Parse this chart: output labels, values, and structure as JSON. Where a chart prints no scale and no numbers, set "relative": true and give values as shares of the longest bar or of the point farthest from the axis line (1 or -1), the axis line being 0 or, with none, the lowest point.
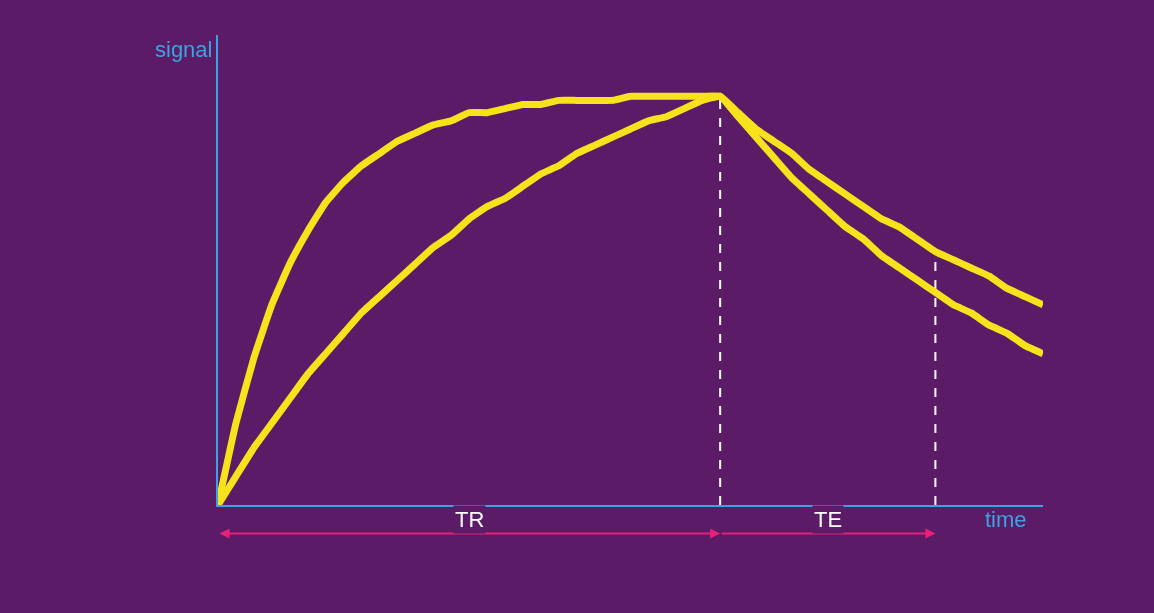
{
  "chart_data": {
    "type": "line",
    "relative": true,
    "xlabel": "time",
    "ylabel": "signal",
    "categories": [
      null,
      null,
      null,
      null,
      null,
      null,
      null,
      null,
      null,
      null,
      null,
      null,
      null,
      null,
      null,
      null,
      null,
      null,
      null,
      null,
      null,
      null,
      null,
      null,
      null,
      null,
      null,
      null,
      null,
      null,
      null,
      null,
      null,
      null,
      null,
      null,
      null,
      null,
      null,
      null,
      null,
      null,
      null,
      null,
      null,
      null,
      null
    ],
    "series": [
      {
        "color": "#f7e21b",
        "values": [
          0,
          0.2,
          0.36,
          0.49,
          0.59,
          0.67,
          0.74,
          0.79,
          0.83,
          0.86,
          0.89,
          0.91,
          0.93,
          0.94,
          0.96,
          0.96,
          0.97,
          0.98,
          0.98,
          0.99,
          0.99,
          0.99,
          0.99,
          1,
          1,
          1,
          1,
          1,
          1,
          0.96,
          0.92,
          0.89,
          0.86,
          0.82,
          0.79,
          0.76,
          0.73,
          0.7,
          0.68,
          0.65,
          0.62,
          0.6,
          0.58,
          0.56,
          0.53,
          0.51,
          0.49
        ]
      },
      {
        "color": "#f7e21b",
        "values": [
          0,
          0.07,
          0.14,
          0.2,
          0.26,
          0.32,
          0.37,
          0.42,
          0.47,
          0.51,
          0.55,
          0.59,
          0.63,
          0.66,
          0.7,
          0.73,
          0.75,
          0.78,
          0.81,
          0.83,
          0.86,
          0.88,
          0.9,
          0.92,
          0.94,
          0.95,
          0.97,
          0.99,
          1,
          0.95,
          0.9,
          0.85,
          0.8,
          0.76,
          0.72,
          0.68,
          0.65,
          0.61,
          0.58,
          0.55,
          0.52,
          0.49,
          0.47,
          0.44,
          0.42,
          0.39,
          0.37
        ]
      }
    ],
    "annotations": [
      "TR",
      "TE"
    ],
    "grid": false,
    "marker": "none",
    "line_style": "solid"
  }
}
